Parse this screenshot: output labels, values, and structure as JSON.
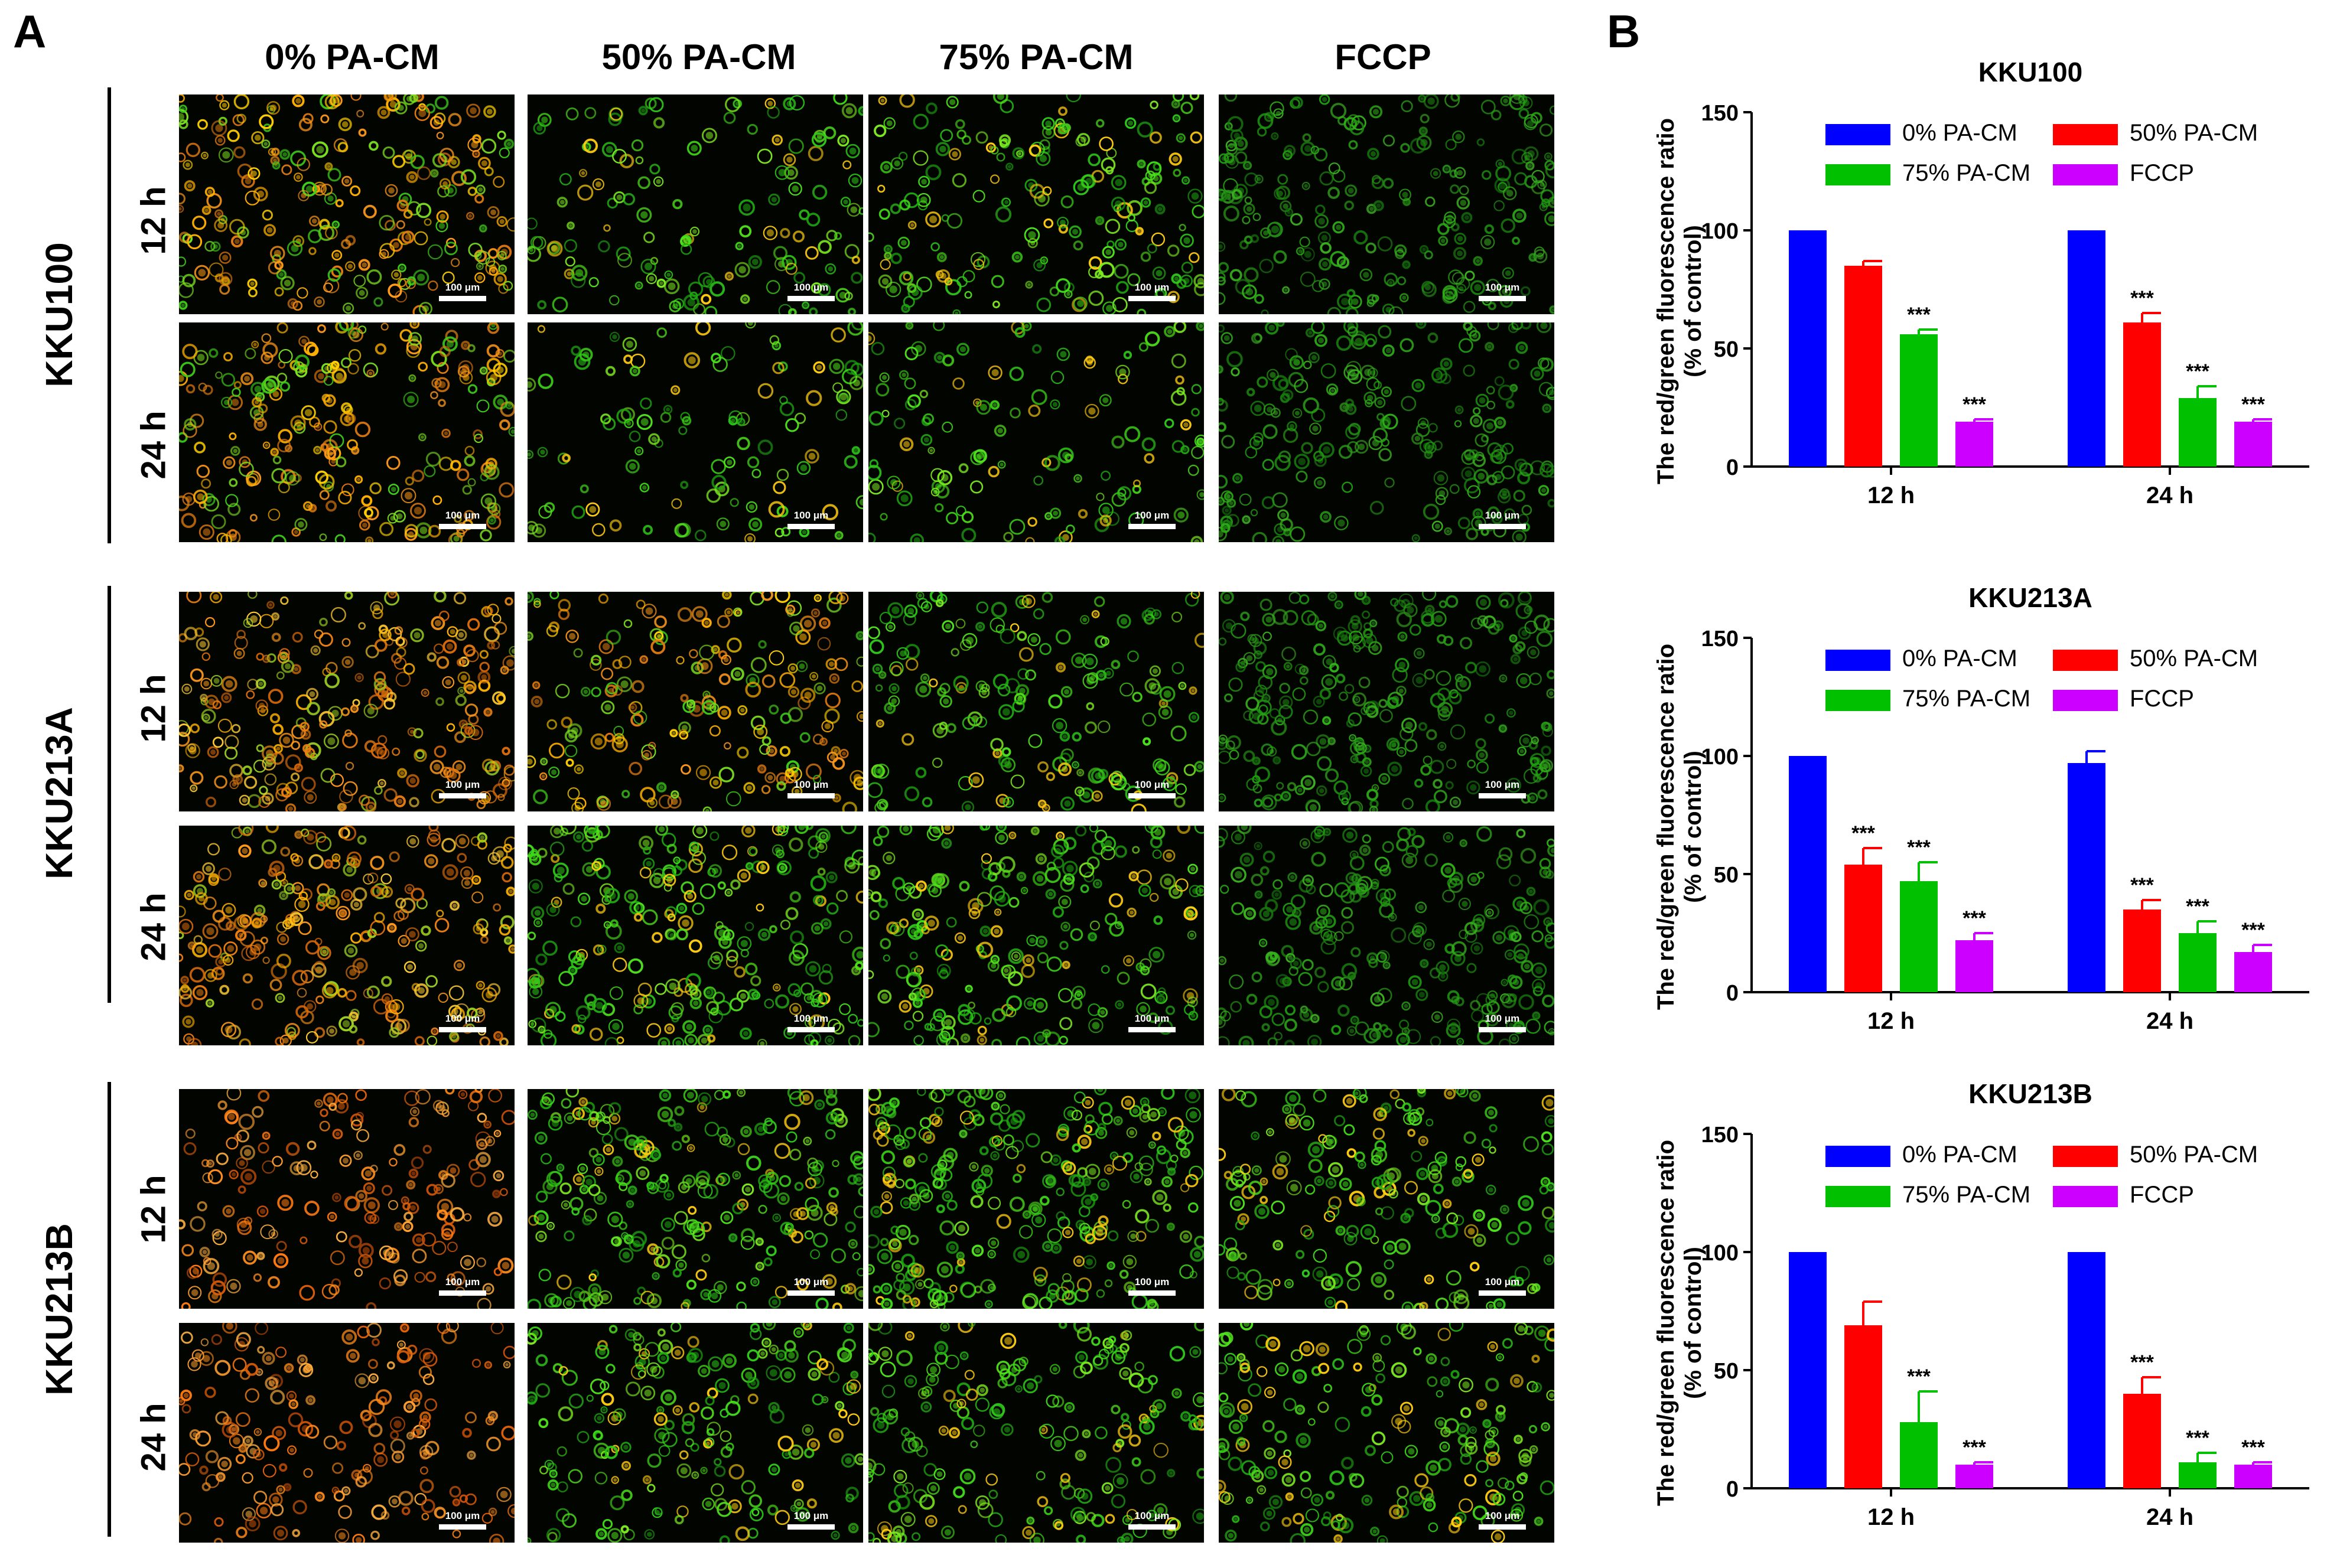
{
  "panel_a": {
    "letter": "A",
    "columns": [
      "0% PA-CM",
      "50% PA-CM",
      "75% PA-CM",
      "FCCP"
    ],
    "cell_lines": [
      {
        "name": "KKU100",
        "times": [
          "12 h",
          "24 h"
        ]
      },
      {
        "name": "KKU213A",
        "times": [
          "12 h",
          "24 h"
        ]
      },
      {
        "name": "KKU213B",
        "times": [
          "12 h",
          "24 h"
        ]
      }
    ],
    "scale_label": "100 μm",
    "images": [
      [
        {
          "dominant": "orange-green",
          "density": 0.75
        },
        {
          "dominant": "green",
          "density": 0.45
        },
        {
          "dominant": "green",
          "density": 0.6
        },
        {
          "dominant": "green-dim",
          "density": 0.7
        }
      ],
      [
        {
          "dominant": "orange-green",
          "density": 0.75
        },
        {
          "dominant": "green",
          "density": 0.35
        },
        {
          "dominant": "green",
          "density": 0.4
        },
        {
          "dominant": "green-dim",
          "density": 0.7
        }
      ],
      [
        {
          "dominant": "orange",
          "density": 0.8
        },
        {
          "dominant": "orange-green",
          "density": 0.6
        },
        {
          "dominant": "green",
          "density": 0.55
        },
        {
          "dominant": "green-dim",
          "density": 0.8
        }
      ],
      [
        {
          "dominant": "orange",
          "density": 0.8
        },
        {
          "dominant": "green",
          "density": 0.8
        },
        {
          "dominant": "green",
          "density": 0.7
        },
        {
          "dominant": "green-dim",
          "density": 0.75
        }
      ],
      [
        {
          "dominant": "orange-red",
          "density": 0.55
        },
        {
          "dominant": "green",
          "density": 0.75
        },
        {
          "dominant": "green",
          "density": 0.85
        },
        {
          "dominant": "green",
          "density": 0.6
        }
      ],
      [
        {
          "dominant": "orange-red",
          "density": 0.55
        },
        {
          "dominant": "green",
          "density": 0.6
        },
        {
          "dominant": "green",
          "density": 0.6
        },
        {
          "dominant": "green",
          "density": 0.6
        }
      ]
    ]
  },
  "panel_b": {
    "letter": "B",
    "colors": {
      "0% PA-CM": "#0000ff",
      "50% PA-CM": "#ff0000",
      "75% PA-CM": "#00c000",
      "FCCP": "#cc00ff"
    }
  },
  "chart_data": [
    {
      "type": "bar",
      "title": "KKU100",
      "ylabel": "The red/green fluorescence ratio\n(% of control)",
      "xlabel": "",
      "ylim": [
        0,
        150
      ],
      "yticks": [
        0,
        50,
        100,
        150
      ],
      "categories": [
        "12 h",
        "24 h"
      ],
      "series": [
        {
          "name": "0% PA-CM",
          "values": [
            100,
            100
          ],
          "errors": [
            0,
            0
          ],
          "sig": [
            "",
            ""
          ]
        },
        {
          "name": "50% PA-CM",
          "values": [
            85,
            61
          ],
          "errors": [
            2,
            4
          ],
          "sig": [
            "",
            "***"
          ]
        },
        {
          "name": "75% PA-CM",
          "values": [
            56,
            29
          ],
          "errors": [
            2,
            5
          ],
          "sig": [
            "***",
            "***"
          ]
        },
        {
          "name": "FCCP",
          "values": [
            19,
            19
          ],
          "errors": [
            1,
            1
          ],
          "sig": [
            "***",
            "***"
          ]
        }
      ]
    },
    {
      "type": "bar",
      "title": "KKU213A",
      "ylabel": "The red/green fluorescence ratio\n(% of control)",
      "xlabel": "",
      "ylim": [
        0,
        150
      ],
      "yticks": [
        0,
        50,
        100,
        150
      ],
      "categories": [
        "12 h",
        "24 h"
      ],
      "series": [
        {
          "name": "0% PA-CM",
          "values": [
            100,
            97
          ],
          "errors": [
            0,
            5
          ],
          "sig": [
            "",
            ""
          ]
        },
        {
          "name": "50% PA-CM",
          "values": [
            54,
            35
          ],
          "errors": [
            7,
            4
          ],
          "sig": [
            "***",
            "***"
          ]
        },
        {
          "name": "75% PA-CM",
          "values": [
            47,
            25
          ],
          "errors": [
            8,
            5
          ],
          "sig": [
            "***",
            "***"
          ]
        },
        {
          "name": "FCCP",
          "values": [
            22,
            17
          ],
          "errors": [
            3,
            3
          ],
          "sig": [
            "***",
            "***"
          ]
        }
      ]
    },
    {
      "type": "bar",
      "title": "KKU213B",
      "ylabel": "The red/green fluorescence ratio\n(% of control)",
      "xlabel": "",
      "ylim": [
        0,
        150
      ],
      "yticks": [
        0,
        50,
        100,
        150
      ],
      "categories": [
        "12 h",
        "24 h"
      ],
      "series": [
        {
          "name": "0% PA-CM",
          "values": [
            100,
            100
          ],
          "errors": [
            0,
            0
          ],
          "sig": [
            "",
            ""
          ]
        },
        {
          "name": "50% PA-CM",
          "values": [
            69,
            40
          ],
          "errors": [
            10,
            7
          ],
          "sig": [
            "",
            "***"
          ]
        },
        {
          "name": "75% PA-CM",
          "values": [
            28,
            11
          ],
          "errors": [
            13,
            4
          ],
          "sig": [
            "***",
            "***"
          ]
        },
        {
          "name": "FCCP",
          "values": [
            10,
            10
          ],
          "errors": [
            1,
            1
          ],
          "sig": [
            "***",
            "***"
          ]
        }
      ]
    }
  ]
}
